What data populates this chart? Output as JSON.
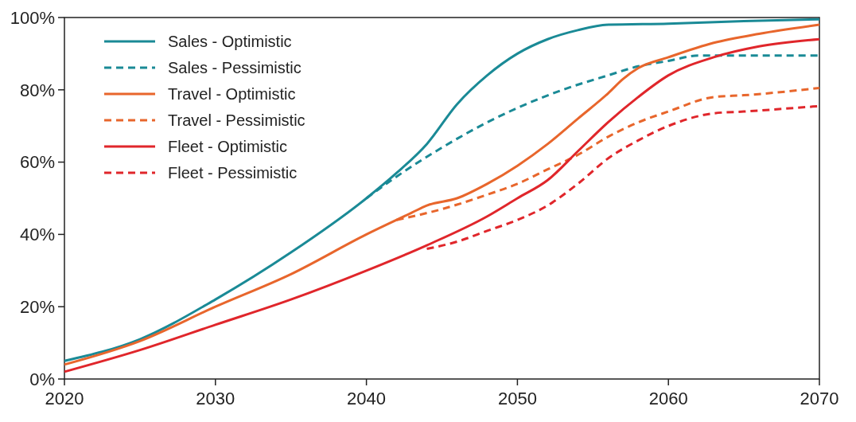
{
  "chart_data": {
    "type": "line",
    "xlim": [
      2020,
      2070
    ],
    "xticks": [
      2020,
      2030,
      2040,
      2050,
      2060,
      2070
    ],
    "ylim": [
      0,
      100
    ],
    "yticks": [
      {
        "value": 0,
        "label": "0%"
      },
      {
        "value": 20,
        "label": "20%"
      },
      {
        "value": 40,
        "label": "40%"
      },
      {
        "value": 60,
        "label": "60%"
      },
      {
        "value": 80,
        "label": "80%"
      },
      {
        "value": 100,
        "label": "100%"
      }
    ],
    "grid": false,
    "legend": "top left",
    "marker": "none",
    "series": [
      {
        "name": "Sales - Optimistic",
        "color": "#1a8a96",
        "line_style": "solid",
        "x": [
          2020,
          2025,
          2030,
          2035,
          2040,
          2042,
          2044,
          2046,
          2048,
          2050,
          2052,
          2054,
          2056,
          2060,
          2065,
          2070
        ],
        "values": [
          5,
          11,
          22,
          35,
          50,
          57,
          65,
          76,
          84,
          90,
          94,
          96.5,
          98,
          98.3,
          99,
          99.5
        ]
      },
      {
        "name": "Sales - Pessimistic",
        "color": "#1a8a96",
        "line_style": "dashed",
        "x": [
          2040,
          2042,
          2045,
          2048,
          2050,
          2053,
          2056,
          2058,
          2060,
          2062,
          2070
        ],
        "values": [
          50,
          56,
          64,
          71,
          75,
          80,
          84,
          86.5,
          88,
          89.5,
          89.5
        ]
      },
      {
        "name": "Travel - Optimistic",
        "color": "#e8662c",
        "line_style": "solid",
        "x": [
          2020,
          2025,
          2030,
          2035,
          2040,
          2043,
          2044,
          2046,
          2048,
          2050,
          2052,
          2054,
          2056,
          2057,
          2058,
          2060,
          2063,
          2066,
          2070
        ],
        "values": [
          4,
          10.5,
          20,
          29,
          40,
          46,
          48,
          50,
          54,
          59,
          65,
          72,
          79,
          83,
          86,
          89,
          93,
          95.5,
          98
        ]
      },
      {
        "name": "Travel - Pessimistic",
        "color": "#e8662c",
        "line_style": "dashed",
        "x": [
          2042,
          2045,
          2048,
          2050,
          2052,
          2054,
          2056,
          2058,
          2060,
          2063,
          2065,
          2070
        ],
        "values": [
          44,
          47,
          51,
          54,
          58,
          62,
          67,
          71,
          74,
          78,
          78.5,
          80.5
        ]
      },
      {
        "name": "Fleet - Optimistic",
        "color": "#e0262b",
        "line_style": "solid",
        "x": [
          2020,
          2025,
          2030,
          2035,
          2040,
          2044,
          2048,
          2050,
          2052,
          2054,
          2056,
          2058,
          2060,
          2063,
          2066,
          2070
        ],
        "values": [
          2,
          8,
          15,
          22,
          30,
          37,
          45,
          50,
          55,
          63,
          71,
          78,
          84,
          89,
          92,
          94
        ]
      },
      {
        "name": "Fleet - Pessimistic",
        "color": "#e0262b",
        "line_style": "dashed",
        "x": [
          2044,
          2046,
          2048,
          2050,
          2052,
          2054,
          2056,
          2058,
          2060,
          2063,
          2065,
          2070
        ],
        "values": [
          36,
          38,
          41,
          44,
          48,
          54,
          61,
          66,
          70,
          73.5,
          74,
          75.5
        ]
      }
    ]
  }
}
